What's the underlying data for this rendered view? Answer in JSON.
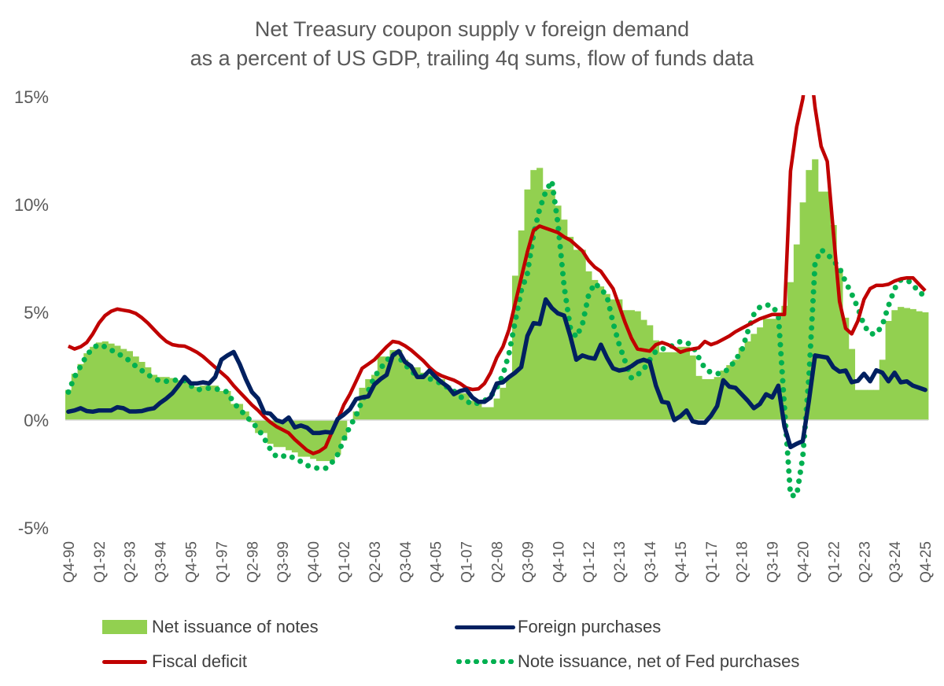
{
  "chart_data": {
    "type": "bar+line",
    "title": "Net Treasury coupon supply v foreign demand",
    "subtitle": "as a percent of US GDP, trailing 4q sums, flow of funds data",
    "xlabel": "",
    "ylabel": "",
    "ylim": [
      -5,
      15
    ],
    "yticks": [
      15,
      10,
      5,
      0,
      -5
    ],
    "ytick_labels": [
      "15%",
      "10%",
      "5%",
      "0%",
      "-5%"
    ],
    "x_range": [
      "Q4-90",
      "Q4-25"
    ],
    "x_frequency": "quarterly",
    "xtick_labels": [
      "Q4-90",
      "Q1-92",
      "Q2-93",
      "Q3-94",
      "Q4-95",
      "Q1-97",
      "Q2-98",
      "Q3-99",
      "Q4-00",
      "Q1-02",
      "Q2-03",
      "Q3-04",
      "Q4-05",
      "Q1-07",
      "Q2-08",
      "Q3-09",
      "Q4-10",
      "Q1-12",
      "Q2-13",
      "Q3-14",
      "Q4-15",
      "Q1-17",
      "Q2-18",
      "Q3-19",
      "Q4-20",
      "Q1-22",
      "Q2-23",
      "Q3-24",
      "Q4-25"
    ],
    "grid": false,
    "legend_position": "bottom",
    "series": [
      {
        "name": "Net issuance of notes",
        "kind": "bar",
        "color": "#92D050",
        "values": [
          1.4,
          2.15,
          2.6,
          3.1,
          3.4,
          3.6,
          3.65,
          3.55,
          3.45,
          3.3,
          3.2,
          2.95,
          2.7,
          2.45,
          2.1,
          2.0,
          2.0,
          1.95,
          1.85,
          1.8,
          1.7,
          1.55,
          1.6,
          1.6,
          1.6,
          1.35,
          1.35,
          0.75,
          0.75,
          0.4,
          -0.1,
          -0.6,
          -0.6,
          -1.1,
          -1.25,
          -1.25,
          -1.4,
          -1.5,
          -1.7,
          -1.7,
          -1.8,
          -1.9,
          -1.9,
          -1.9,
          -1.6,
          -0.95,
          0,
          0.4,
          1.5,
          1.9,
          2.1,
          2.95,
          2.95,
          3.25,
          3.25,
          2.8,
          2.45,
          2.45,
          2.2,
          2.1,
          2.1,
          1.9,
          1.6,
          1.4,
          1.25,
          1.25,
          0.9,
          0.8,
          0.6,
          0.6,
          1.0,
          1.5,
          2.0,
          6.7,
          8.8,
          10.7,
          11.6,
          11.7,
          10.7,
          10.7,
          9.95,
          9.3,
          8.5,
          7.9,
          7.9,
          6.9,
          6.5,
          6.2,
          5.85,
          5.6,
          5.6,
          5.1,
          5.1,
          5.05,
          4.65,
          4.4,
          3.7,
          3.15,
          3.15,
          3.15,
          3.4,
          3.4,
          3.0,
          2.05,
          1.9,
          1.9,
          2.0,
          2.3,
          2.55,
          2.8,
          3.35,
          3.65,
          4.0,
          4.3,
          4.7,
          4.7,
          4.7,
          5.3,
          6.4,
          8.15,
          10.1,
          11.6,
          12.1,
          10.6,
          10.6,
          9.05,
          7.05,
          4.75,
          3.3,
          1.4,
          1.4,
          1.4,
          1.4,
          2.8,
          4.6,
          5.1,
          5.25,
          5.2,
          5.15,
          5.05,
          5.0
        ]
      },
      {
        "name": "Foreign purchases",
        "kind": "line",
        "color": "#002060",
        "values": [
          0.39,
          0.45,
          0.55,
          0.42,
          0.39,
          0.45,
          0.45,
          0.45,
          0.6,
          0.55,
          0.4,
          0.4,
          0.42,
          0.5,
          0.55,
          0.8,
          1.0,
          1.25,
          1.6,
          2.0,
          1.7,
          1.7,
          1.75,
          1.7,
          2.0,
          2.8,
          3.0,
          3.16,
          2.6,
          1.9,
          1.3,
          1.0,
          0.35,
          0.3,
          0.0,
          -0.1,
          0.12,
          -0.34,
          -0.25,
          -0.35,
          -0.6,
          -0.6,
          -0.55,
          -0.58,
          0.05,
          0.25,
          0.5,
          0.97,
          1.05,
          1.1,
          1.65,
          1.9,
          2.1,
          3.0,
          3.2,
          2.7,
          2.5,
          2.0,
          2.0,
          2.3,
          2.0,
          1.75,
          1.55,
          1.2,
          1.35,
          1.42,
          1.05,
          0.85,
          0.85,
          1.05,
          1.7,
          1.75,
          2.0,
          2.2,
          2.46,
          3.9,
          4.5,
          4.46,
          5.6,
          5.2,
          4.95,
          4.85,
          3.9,
          2.8,
          3.0,
          2.9,
          2.85,
          3.5,
          2.9,
          2.4,
          2.3,
          2.35,
          2.5,
          2.7,
          2.8,
          2.7,
          1.6,
          0.85,
          0.8,
          0.0,
          0.18,
          0.45,
          -0.06,
          -0.12,
          -0.12,
          0.2,
          0.65,
          1.85,
          1.55,
          1.5,
          1.2,
          0.9,
          0.55,
          0.75,
          1.2,
          1.05,
          1.6,
          -0.3,
          -1.25,
          -1.1,
          -0.97,
          0.9,
          3.0,
          2.95,
          2.9,
          2.45,
          2.25,
          2.3,
          1.76,
          1.82,
          2.15,
          1.8,
          2.31,
          2.2,
          1.8,
          2.2,
          1.75,
          1.8,
          1.6,
          1.5,
          1.4
        ]
      },
      {
        "name": "Fiscal deficit",
        "kind": "line",
        "color": "#C00000",
        "values": [
          3.43,
          3.3,
          3.4,
          3.6,
          4.0,
          4.5,
          4.85,
          5.05,
          5.15,
          5.1,
          5.05,
          4.95,
          4.75,
          4.5,
          4.2,
          3.9,
          3.65,
          3.5,
          3.45,
          3.43,
          3.3,
          3.15,
          2.95,
          2.7,
          2.45,
          2.2,
          1.95,
          1.6,
          1.3,
          1.0,
          0.7,
          0.45,
          0.15,
          -0.1,
          -0.3,
          -0.45,
          -0.6,
          -0.9,
          -1.15,
          -1.4,
          -1.55,
          -1.45,
          -1.25,
          -0.6,
          0.0,
          0.7,
          1.2,
          1.8,
          2.4,
          2.6,
          2.8,
          3.1,
          3.4,
          3.65,
          3.6,
          3.45,
          3.25,
          3.0,
          2.75,
          2.45,
          2.2,
          2.05,
          1.95,
          1.85,
          1.7,
          1.5,
          1.42,
          1.45,
          1.7,
          2.2,
          2.9,
          3.4,
          4.2,
          5.4,
          6.6,
          7.8,
          8.8,
          9.0,
          8.9,
          8.8,
          8.7,
          8.5,
          8.35,
          8.1,
          7.85,
          7.4,
          7.1,
          6.9,
          6.5,
          6.1,
          5.3,
          4.5,
          3.8,
          3.3,
          3.25,
          3.2,
          3.5,
          3.6,
          3.5,
          3.35,
          3.15,
          3.25,
          3.3,
          3.35,
          3.65,
          3.5,
          3.6,
          3.75,
          3.9,
          4.1,
          4.25,
          4.4,
          4.55,
          4.7,
          4.8,
          4.9,
          4.9,
          4.9,
          11.55,
          13.6,
          14.9,
          17,
          14.5,
          12.7,
          12.0,
          8.7,
          5.5,
          4.25,
          4.0,
          4.6,
          5.6,
          6.1,
          6.25,
          6.25,
          6.3,
          6.45,
          6.55,
          6.6,
          6.6,
          6.3,
          6.0
        ]
      },
      {
        "name": "Note issuance, net of Fed purchases",
        "kind": "dotted-line",
        "color": "#00B050",
        "values": [
          1.3,
          2.0,
          2.5,
          3.0,
          3.35,
          3.5,
          3.4,
          3.25,
          3.1,
          2.95,
          2.75,
          2.5,
          2.3,
          2.1,
          1.95,
          1.8,
          1.8,
          1.85,
          1.85,
          1.83,
          1.6,
          1.4,
          1.45,
          1.48,
          1.45,
          1.4,
          1.3,
          0.8,
          0.5,
          0.2,
          -0.1,
          -0.4,
          -0.85,
          -1.35,
          -1.7,
          -1.68,
          -1.63,
          -1.8,
          -1.92,
          -2.1,
          -2.2,
          -2.24,
          -2.24,
          -2.0,
          -1.6,
          -0.9,
          -0.3,
          0.2,
          0.9,
          1.35,
          2.0,
          2.4,
          2.75,
          3.09,
          2.9,
          2.6,
          2.25,
          2.1,
          2.0,
          1.92,
          1.8,
          1.7,
          1.5,
          1.35,
          1.1,
          0.9,
          0.72,
          0.8,
          0.9,
          1.1,
          1.5,
          2.1,
          3.1,
          4.55,
          6.0,
          6.8,
          8.6,
          9.8,
          10.6,
          11.1,
          9.1,
          6.2,
          4.3,
          3.85,
          4.45,
          5.8,
          6.35,
          6.1,
          5.75,
          4.52,
          3.5,
          2.7,
          1.95,
          2.1,
          2.35,
          2.8,
          3.2,
          3.3,
          3.35,
          3.5,
          3.65,
          3.6,
          3.44,
          2.9,
          2.4,
          2.2,
          2.15,
          2.2,
          2.4,
          2.8,
          3.2,
          4.1,
          4.9,
          5.25,
          5.35,
          5.3,
          4.9,
          0.6,
          -3.5,
          -3.5,
          -1.7,
          2.0,
          7.3,
          7.9,
          7.7,
          7.4,
          7.05,
          6.4,
          5.85,
          5.2,
          4.4,
          4.0,
          4.0,
          4.4,
          5.3,
          6.1,
          6.5,
          6.5,
          6.3,
          5.9,
          5.8
        ]
      }
    ]
  }
}
